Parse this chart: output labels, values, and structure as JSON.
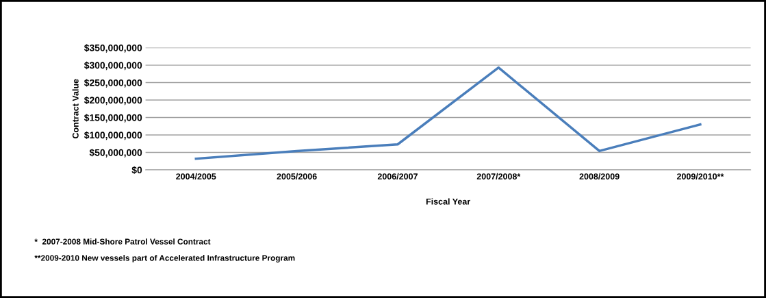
{
  "chart_data": {
    "type": "line",
    "xlabel": "Fiscal Year",
    "ylabel": "Contract Value",
    "categories": [
      "2004/2005",
      "2005/2006",
      "2006/2007",
      "2007/2008*",
      "2008/2009",
      "2009/2010**"
    ],
    "series": [
      {
        "color": "#4a7ebb",
        "values": [
          32000000,
          54000000,
          73000000,
          293000000,
          54000000,
          130000000
        ]
      }
    ],
    "ylim": [
      0,
      350000000
    ],
    "yticks": [
      {
        "value": 0,
        "label": "$0"
      },
      {
        "value": 50000000,
        "label": "$50,000,000"
      },
      {
        "value": 100000000,
        "label": "$100,000,000"
      },
      {
        "value": 150000000,
        "label": "$150,000,000"
      },
      {
        "value": 200000000,
        "label": "$200,000,000"
      },
      {
        "value": 250000000,
        "label": "$250,000,000"
      },
      {
        "value": 300000000,
        "label": "$300,000,000"
      },
      {
        "value": 350000000,
        "label": "$350,000,000"
      }
    ],
    "grid": "y",
    "legend": false,
    "marker": "none",
    "line_style": "solid",
    "annotations": [
      "*  2007-2008 Mid-Shore Patrol Vessel Contract",
      "**2009-2010 New vessels part of Accelerated Infrastructure Program"
    ]
  }
}
